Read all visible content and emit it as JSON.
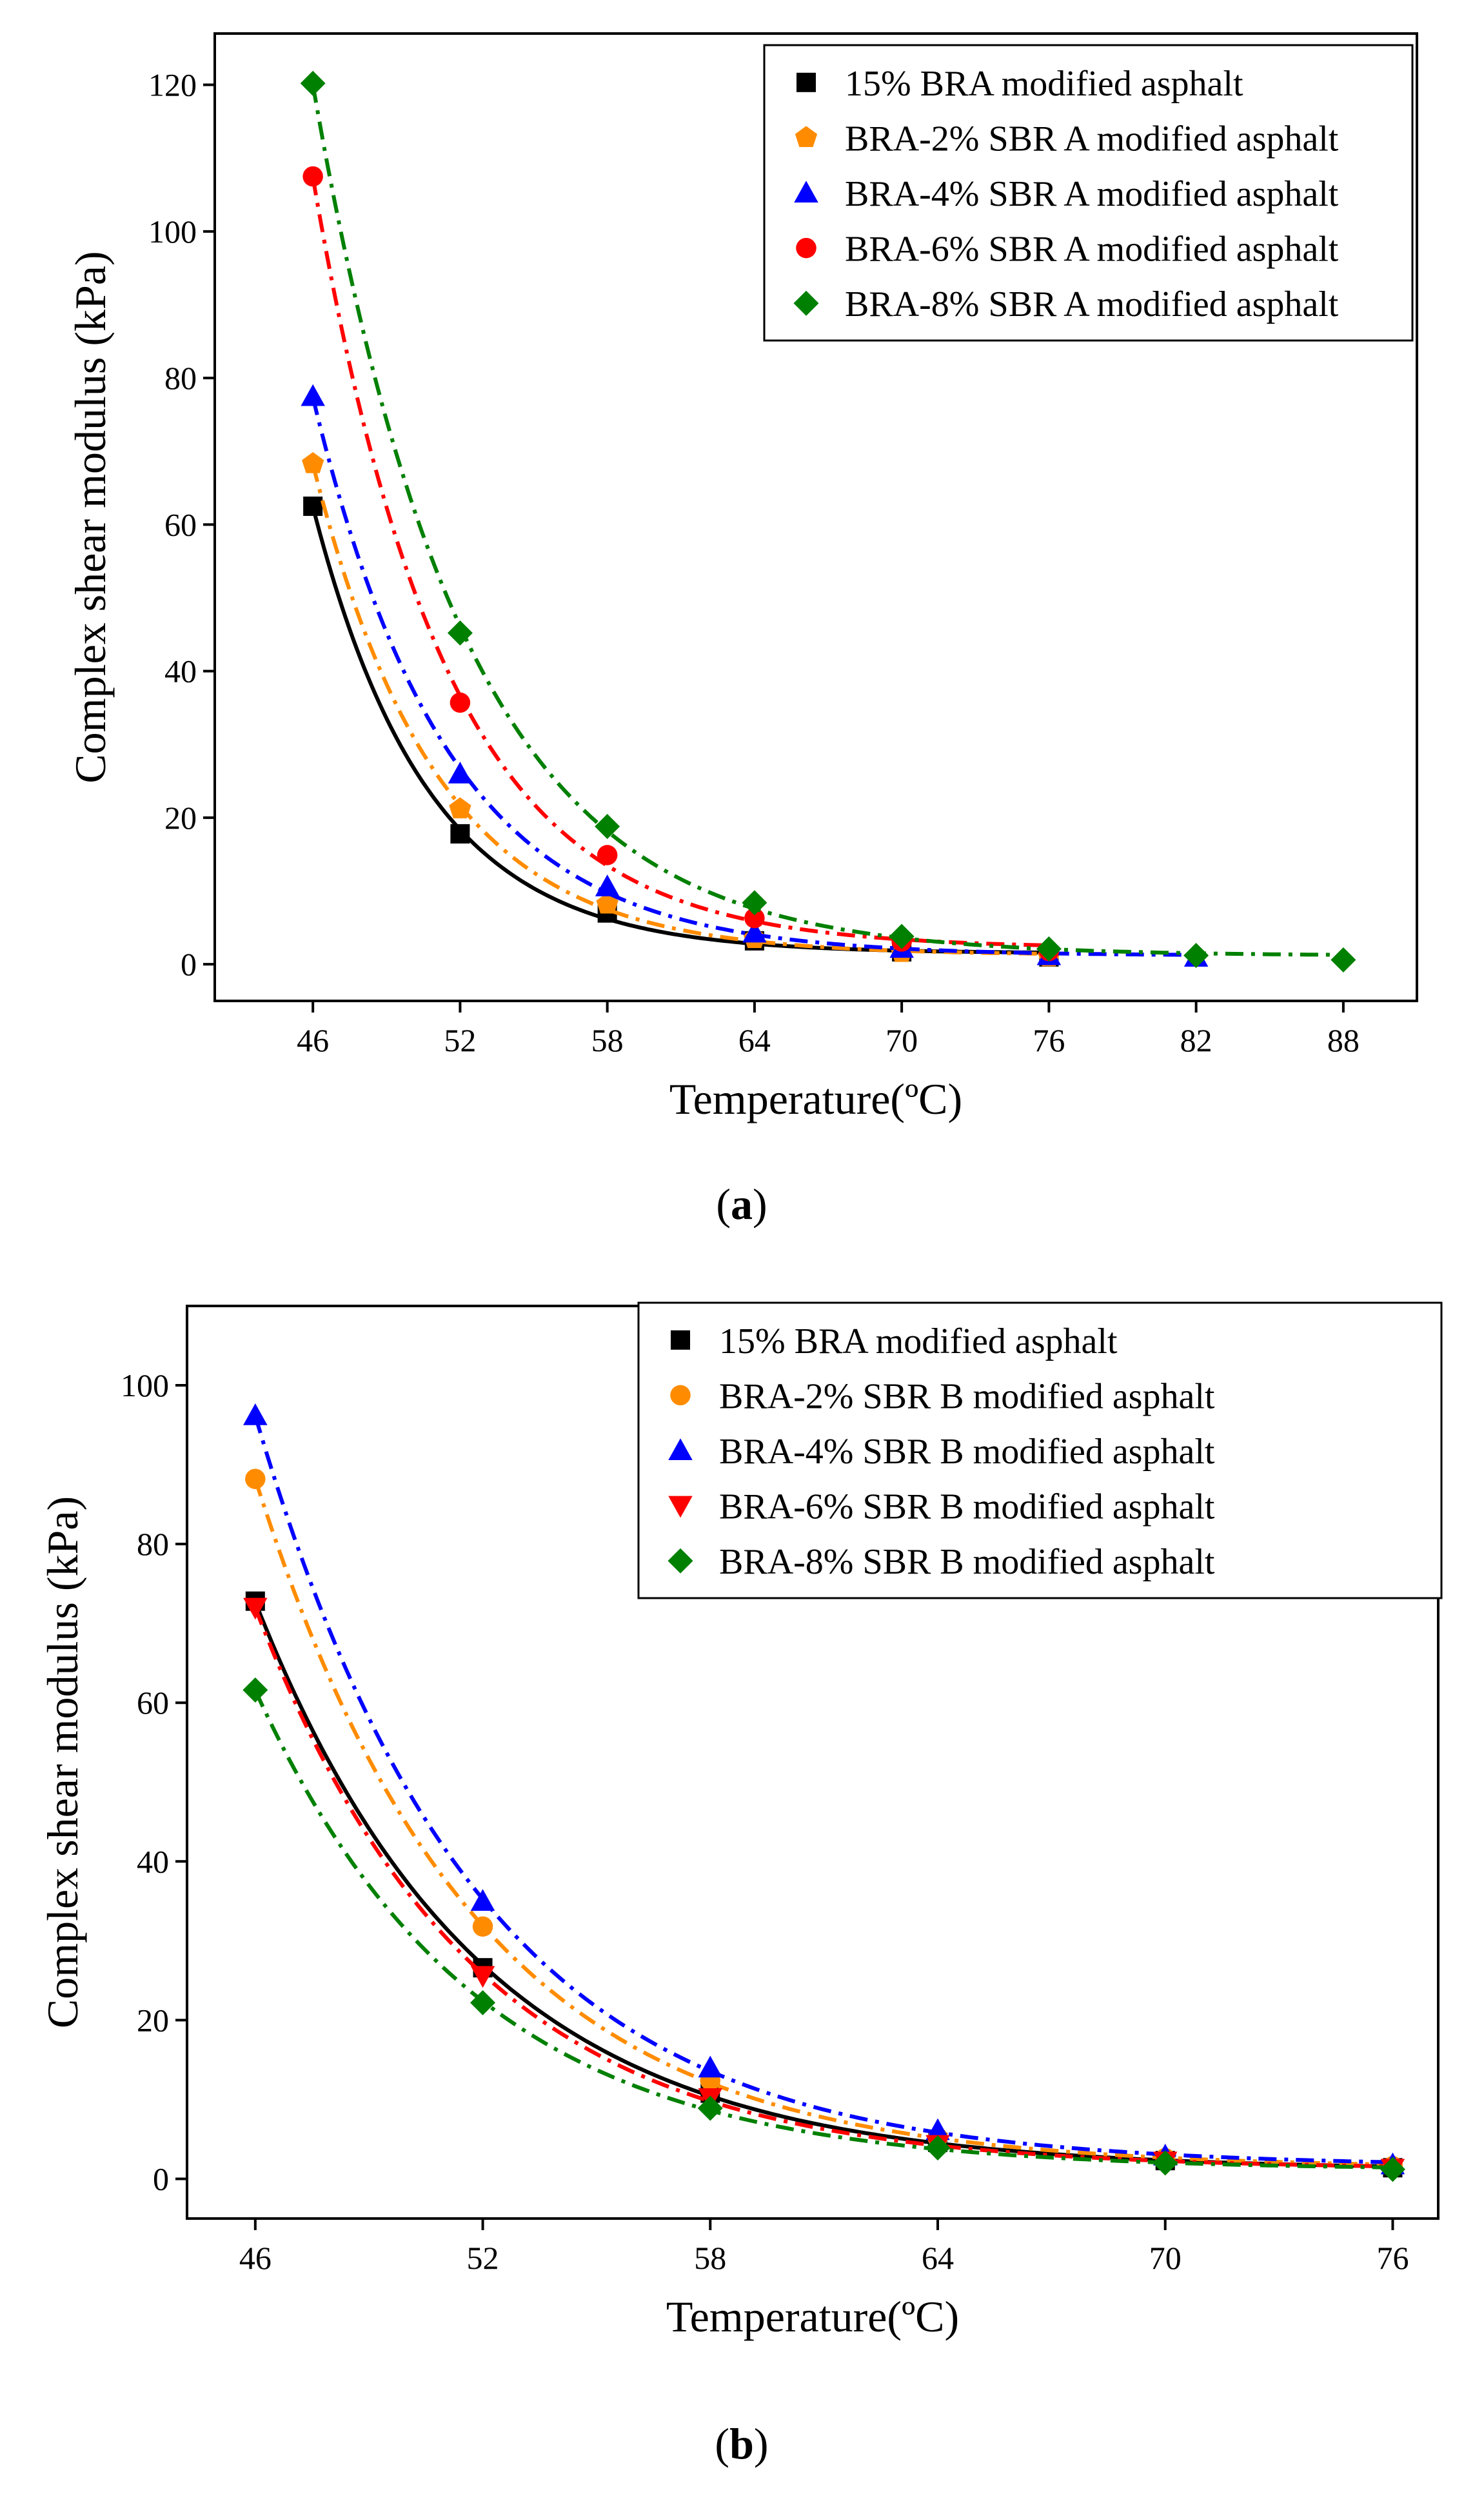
{
  "chart_data": [
    {
      "type": "scatter",
      "panel_label": "a",
      "caption_open": "(",
      "caption_close": ")",
      "xlabel": "Temperature(ºC)",
      "ylabel": "Complex shear modulus (kPa)",
      "xlim": [
        42,
        91
      ],
      "ylim": [
        -5,
        127
      ],
      "xticks": [
        46,
        52,
        58,
        64,
        70,
        76,
        82,
        88
      ],
      "yticks": [
        0,
        20,
        40,
        60,
        80,
        100,
        120
      ],
      "legend_position": "top-right",
      "series": [
        {
          "name": "15% BRA modified asphalt",
          "color": "#000000",
          "marker": "square",
          "line": "solid",
          "x": [
            46,
            52,
            58,
            64,
            70,
            76
          ],
          "y": [
            62.5,
            17.8,
            7.0,
            3.2,
            1.7,
            1.0
          ]
        },
        {
          "name": "BRA-2% SBR A modified asphalt",
          "color": "#ff8c00",
          "marker": "pentagon",
          "line": "dashdot",
          "x": [
            46,
            52,
            58,
            64,
            70,
            76
          ],
          "y": [
            68.3,
            21.2,
            8.2,
            3.5,
            1.6,
            1.0
          ]
        },
        {
          "name": "BRA-4% SBR A modified asphalt",
          "color": "#0000ff",
          "marker": "triangle-up",
          "line": "dashdot",
          "x": [
            46,
            52,
            58,
            64,
            70,
            76,
            82
          ],
          "y": [
            77.5,
            26.0,
            10.6,
            4.3,
            2.2,
            1.2,
            1.0
          ]
        },
        {
          "name": "BRA-6% SBR A modified asphalt",
          "color": "#ff0000",
          "marker": "circle",
          "line": "dashdot",
          "x": [
            46,
            52,
            58,
            64,
            70,
            76
          ],
          "y": [
            107.5,
            35.7,
            14.9,
            6.3,
            3.1,
            1.8
          ]
        },
        {
          "name": "BRA-8% SBR A modified asphalt",
          "color": "#008000",
          "marker": "diamond",
          "line": "dashdot",
          "x": [
            46,
            52,
            58,
            64,
            70,
            76,
            82,
            88
          ],
          "y": [
            120.2,
            45.2,
            18.8,
            8.4,
            3.8,
            2.1,
            1.2,
            0.6
          ]
        }
      ]
    },
    {
      "type": "scatter",
      "panel_label": "b",
      "caption_open": "(",
      "caption_close": ")",
      "xlabel": "Temperature(ºC)",
      "ylabel": "Complex shear modulus (kPa)",
      "xlim": [
        44.2,
        77.2
      ],
      "ylim": [
        -5,
        110
      ],
      "xticks": [
        46,
        52,
        58,
        64,
        70,
        76
      ],
      "yticks": [
        0,
        20,
        40,
        60,
        80,
        100
      ],
      "legend_position": "top-right",
      "series": [
        {
          "name": "15% BRA modified asphalt",
          "color": "#000000",
          "marker": "square",
          "line": "solid",
          "x": [
            46,
            52,
            58,
            64,
            70,
            76
          ],
          "y": [
            72.8,
            26.6,
            10.8,
            4.6,
            2.3,
            1.4
          ]
        },
        {
          "name": "BRA-2% SBR B modified asphalt",
          "color": "#ff8c00",
          "marker": "circle",
          "line": "dashdot",
          "x": [
            46,
            52,
            58,
            64,
            70,
            76
          ],
          "y": [
            88.2,
            31.8,
            12.4,
            5.2,
            2.6,
            1.6
          ]
        },
        {
          "name": "BRA-4% SBR B modified asphalt",
          "color": "#0000ff",
          "marker": "triangle-up",
          "line": "dashdot",
          "x": [
            46,
            52,
            58,
            64,
            70,
            76
          ],
          "y": [
            96.2,
            35.0,
            14.0,
            6.1,
            2.9,
            1.8
          ]
        },
        {
          "name": "BRA-6% SBR B modified asphalt",
          "color": "#ff0000",
          "marker": "triangle-down",
          "line": "dashdot",
          "x": [
            46,
            52,
            58,
            64,
            70,
            76
          ],
          "y": [
            72.0,
            25.6,
            10.2,
            4.3,
            2.2,
            1.3
          ]
        },
        {
          "name": "BRA-8% SBR B modified asphalt",
          "color": "#008000",
          "marker": "diamond",
          "line": "dashdot",
          "x": [
            46,
            52,
            58,
            64,
            70,
            76
          ],
          "y": [
            61.6,
            22.2,
            8.9,
            3.9,
            2.0,
            1.2
          ]
        }
      ]
    }
  ]
}
